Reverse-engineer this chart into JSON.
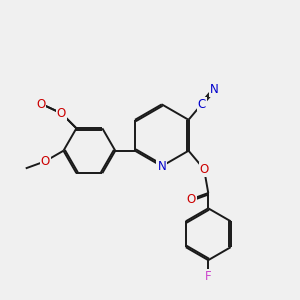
{
  "bg_color": "#f0f0f0",
  "bond_color": "#1a1a1a",
  "bond_width": 1.4,
  "dbo": 0.055,
  "atom_colors": {
    "N": "#0000cc",
    "O": "#cc0000",
    "F": "#cc44cc",
    "C_label": "#0000cc"
  },
  "font_size": 8.0
}
